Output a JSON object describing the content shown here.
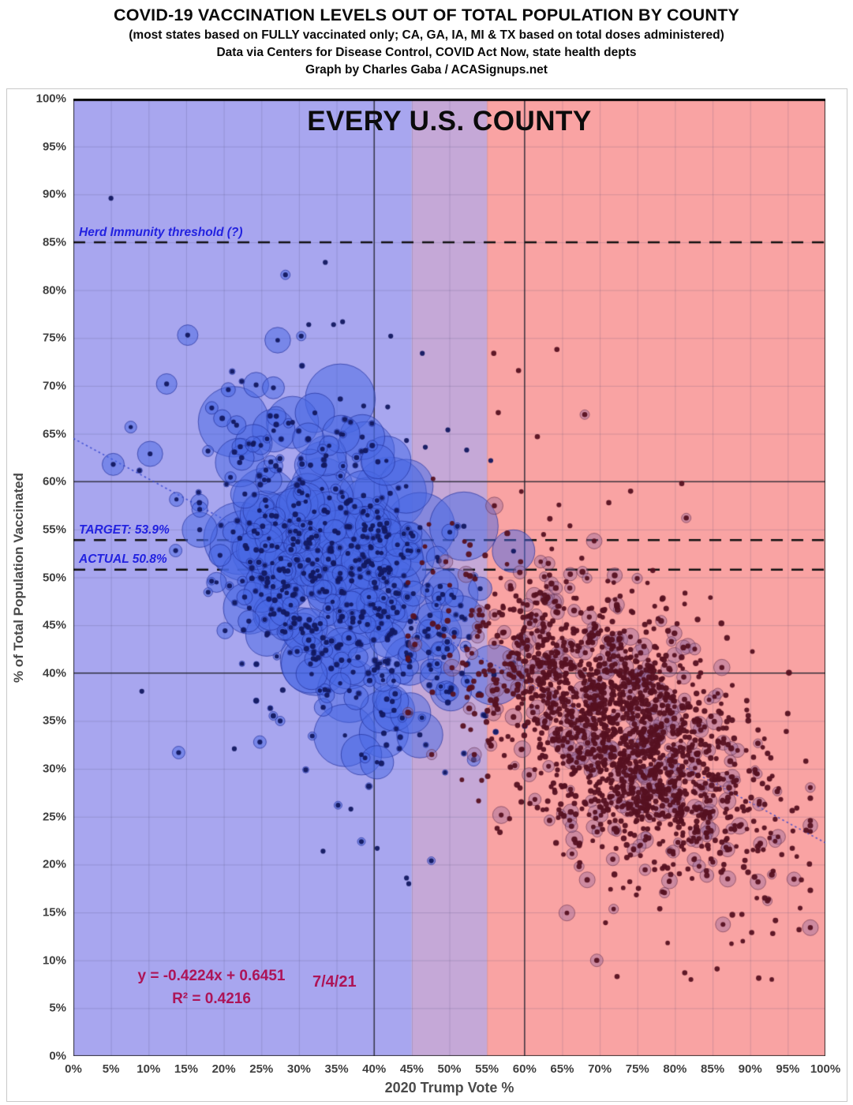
{
  "header": {
    "title": "COVID-19 VACCINATION LEVELS OUT OF TOTAL POPULATION BY COUNTY",
    "subtitle1": "(most states based on FULLY vaccinated only; CA, GA, IA, MI & TX based on total doses administered)",
    "subtitle2": "Data via Centers for Disease Control, COVID Act Now, state health depts",
    "subtitle3": "Graph by Charles Gaba / ACASignups.net"
  },
  "chart_data": {
    "type": "scatter",
    "title": "EVERY U.S. COUNTY",
    "xlabel": "2020 Trump Vote %",
    "ylabel": "% of Total Population Vaccinated",
    "xlim": [
      0,
      100
    ],
    "ylim": [
      0,
      100
    ],
    "grid": true,
    "x_ticks": [
      "0%",
      "5%",
      "10%",
      "15%",
      "20%",
      "25%",
      "30%",
      "35%",
      "40%",
      "45%",
      "50%",
      "55%",
      "60%",
      "65%",
      "70%",
      "75%",
      "80%",
      "85%",
      "90%",
      "95%",
      "100%"
    ],
    "y_ticks": [
      "0%",
      "5%",
      "10%",
      "15%",
      "20%",
      "25%",
      "30%",
      "35%",
      "40%",
      "45%",
      "50%",
      "55%",
      "60%",
      "65%",
      "70%",
      "75%",
      "80%",
      "85%",
      "90%",
      "95%",
      "100%"
    ],
    "date_label": "7/4/21",
    "equation": "y = -0.4224x + 0.6451",
    "r_squared": "R² = 0.4216",
    "equation_color": "#ad1457",
    "annotation_color": "#2222e0",
    "gridline_color": "rgba(70,70,110,0.20)",
    "border_color": "rgba(40,40,40,0.9)",
    "regions": [
      {
        "label": "biden-majority-zone",
        "from": 0,
        "to": 45,
        "color": "#a8a6ef"
      },
      {
        "label": "swing-zone",
        "from": 45,
        "to": 55,
        "color": "#c5a8d7"
      },
      {
        "label": "trump-majority-zone",
        "from": 55,
        "to": 100,
        "color": "#f9a3a3"
      }
    ],
    "reference_lines": {
      "vertical": [
        40,
        60
      ],
      "horizontal": [
        40,
        60
      ],
      "color": "rgba(35,35,45,0.85)"
    },
    "dashed_lines": [
      {
        "y": 85,
        "label": "Herd Immunity threshold (?)"
      },
      {
        "y": 53.9,
        "label": "TARGET: 53.9%"
      },
      {
        "y": 50.8,
        "label": "ACTUAL 50.8%"
      }
    ],
    "trendline": {
      "slope": -0.4224,
      "intercept": 0.6451,
      "color": "rgba(45,65,205,0.8)",
      "dash": [
        2.5,
        3.5
      ],
      "width": 1.6
    },
    "seed": 42,
    "series": [
      {
        "name": "dem-leaning counties",
        "dot_color": "rgba(18,24,96,0.95)",
        "dot_r": 3.1,
        "halo_fill": "rgba(72,104,228,0.50)",
        "halo_stroke": "rgba(30,45,150,0.65)",
        "cluster": {
          "count": 520,
          "x_mean": 35.5,
          "x_sd": 8.5,
          "x_min": 3,
          "x_max": 63,
          "y_intercept": 64.51,
          "y_slope": -0.4224,
          "y_noise": 7.8,
          "y_min": 18,
          "y_max": 85,
          "halo_min": 3.5,
          "halo_max": 46,
          "halo_pow": 4.5
        },
        "featured": [
          [
            5.0,
            89.6,
            2.6
          ],
          [
            15.2,
            75.3,
            13
          ],
          [
            30.3,
            75.2,
            6
          ],
          [
            28.2,
            81.6,
            6
          ],
          [
            33.5,
            82.9,
            3
          ],
          [
            31.3,
            76.4,
            3
          ],
          [
            34.6,
            76.4,
            3
          ],
          [
            35.8,
            76.7,
            3
          ],
          [
            12.4,
            70.2,
            13
          ],
          [
            20.6,
            69.6,
            9
          ],
          [
            24.3,
            70.1,
            16
          ],
          [
            26.6,
            69.8,
            14
          ],
          [
            10.2,
            62.9,
            16
          ],
          [
            5.3,
            61.8,
            14
          ],
          [
            18.4,
            67.7,
            8
          ],
          [
            21.7,
            65.9,
            12
          ],
          [
            23.9,
            63.9,
            10
          ],
          [
            17.9,
            63.2,
            7
          ],
          [
            28.6,
            66.1,
            6
          ],
          [
            31.2,
            64.4,
            4
          ],
          [
            36.1,
            66.5,
            4
          ],
          [
            38.6,
            67.9,
            3
          ],
          [
            41.8,
            67.8,
            3
          ],
          [
            44.3,
            64.3,
            3
          ],
          [
            46.8,
            63.6,
            3
          ],
          [
            42.2,
            75.2,
            3
          ],
          [
            46.4,
            73.4,
            3
          ],
          [
            49.8,
            65.4,
            3
          ],
          [
            52.3,
            63.3,
            3
          ],
          [
            55.5,
            62.2,
            3
          ],
          [
            26.4,
            53.3,
            52
          ],
          [
            23.4,
            46.8,
            33
          ],
          [
            30.5,
            44.2,
            25
          ],
          [
            33.8,
            56.8,
            26
          ],
          [
            29.3,
            57.5,
            22
          ],
          [
            36.5,
            52.5,
            20
          ],
          [
            39.8,
            55.4,
            22
          ],
          [
            43.0,
            51.5,
            18
          ],
          [
            45.2,
            48.3,
            16
          ],
          [
            40.6,
            44.7,
            18
          ],
          [
            37.2,
            40.1,
            16
          ],
          [
            44.9,
            54.6,
            14
          ],
          [
            48.4,
            52.1,
            14
          ],
          [
            50.6,
            47.9,
            12
          ],
          [
            47.2,
            44.6,
            12
          ],
          [
            31.8,
            49.6,
            20
          ],
          [
            19.5,
            52.3,
            14
          ],
          [
            16.8,
            57.1,
            10
          ],
          [
            13.6,
            52.8,
            8
          ],
          [
            22.8,
            58.7,
            18
          ],
          [
            25.6,
            61.2,
            12
          ],
          [
            27.9,
            50.9,
            16
          ],
          [
            14.0,
            31.7,
            8
          ],
          [
            9.1,
            38.1,
            3
          ],
          [
            24.8,
            32.8,
            8
          ],
          [
            21.4,
            32.1,
            3
          ],
          [
            33.2,
            21.4,
            3
          ],
          [
            36.9,
            25.8,
            3
          ],
          [
            40.4,
            21.7,
            3
          ],
          [
            44.3,
            18.6,
            3
          ],
          [
            44.6,
            18.0,
            3
          ],
          [
            47.6,
            20.4,
            5
          ],
          [
            35.2,
            26.2,
            5
          ],
          [
            38.3,
            22.4,
            5
          ],
          [
            30.9,
            29.9,
            4
          ],
          [
            27.5,
            35.0,
            6
          ]
        ]
      },
      {
        "name": "gop-leaning counties",
        "dot_color": "rgba(86,17,33,0.95)",
        "dot_r": 3.3,
        "halo_fill": "rgba(148,104,158,0.42)",
        "halo_stroke": "rgba(95,42,70,0.55)",
        "cluster": {
          "count": 1750,
          "x_mean": 72.5,
          "x_sd": 9.5,
          "x_min": 44.5,
          "x_max": 98,
          "y_intercept": 64.51,
          "y_slope": -0.4224,
          "y_noise": 6.6,
          "y_min": 8,
          "y_max": 74.5,
          "halo_prob": 0.22,
          "halo_rmin": 5,
          "halo_rmax": 11
        },
        "featured": [
          [
            55.9,
            73.4,
            3
          ],
          [
            64.3,
            73.8,
            3
          ],
          [
            59.2,
            71.6,
            3
          ],
          [
            56.5,
            67.2,
            3
          ],
          [
            68.0,
            67.0,
            6
          ],
          [
            61.7,
            64.7,
            3
          ],
          [
            80.9,
            59.8,
            3
          ],
          [
            74.1,
            59.0,
            3
          ],
          [
            71.2,
            57.8,
            3
          ],
          [
            81.5,
            56.2,
            6
          ],
          [
            69.6,
            10.0,
            8
          ],
          [
            81.3,
            8.7,
            3
          ],
          [
            85.6,
            9.1,
            3
          ],
          [
            72.3,
            8.3,
            3
          ],
          [
            90.2,
            12.9,
            3
          ],
          [
            93.0,
            12.8,
            3
          ],
          [
            96.5,
            13.2,
            3
          ],
          [
            95.6,
            21.7,
            3
          ],
          [
            96.8,
            18.4,
            3
          ],
          [
            92.3,
            16.2,
            6
          ],
          [
            88.9,
            14.8,
            3
          ],
          [
            96.2,
            25.9,
            3
          ],
          [
            97.4,
            30.8,
            3
          ],
          [
            94.8,
            33.9,
            3
          ]
        ]
      }
    ]
  }
}
